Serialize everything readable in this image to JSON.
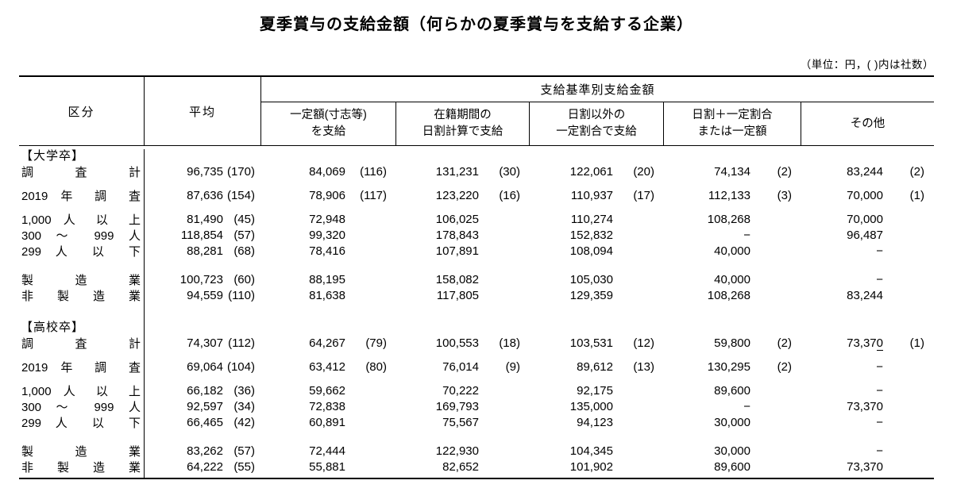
{
  "title": "夏季賞与の支給金額（何らかの夏季賞与を支給する企業）",
  "unit_note": "（単位：円，( )内は社数）",
  "table": {
    "corner_header": "区分",
    "average_header": "平均",
    "group_header": "支給基準別支給金額",
    "basis_columns": [
      {
        "line1": "一定額(寸志等)",
        "line2": "を支給"
      },
      {
        "line1": "在籍期間の",
        "line2": "日割計算で支給"
      },
      {
        "line1": "日割以外の",
        "line2": "一定割合で支給"
      },
      {
        "line1": "日割＋一定割合",
        "line2": "または一定額"
      },
      {
        "line1": "その他",
        "line2": ""
      }
    ],
    "sections": [
      {
        "header": "【大学卒】",
        "groups": [
          [
            {
              "label": "調 査 計",
              "cells": [
                {
                  "v": "96,735",
                  "n": "(170)"
                },
                {
                  "v": "84,069",
                  "n": "(116)"
                },
                {
                  "v": "131,231",
                  "n": "(30)"
                },
                {
                  "v": "122,061",
                  "n": "(20)"
                },
                {
                  "v": "74,134",
                  "n": "(2)"
                },
                {
                  "v": "83,244",
                  "n": "(2)"
                }
              ]
            }
          ],
          [
            {
              "label": "2019 年 調 査",
              "cells": [
                {
                  "v": "87,636",
                  "n": "(154)"
                },
                {
                  "v": "78,906",
                  "n": "(117)"
                },
                {
                  "v": "123,220",
                  "n": "(16)"
                },
                {
                  "v": "110,937",
                  "n": "(17)"
                },
                {
                  "v": "112,133",
                  "n": "(3)"
                },
                {
                  "v": "70,000",
                  "n": "(1)"
                }
              ]
            }
          ],
          [
            {
              "label": "1,000 人 以 上",
              "cells": [
                {
                  "v": "81,490",
                  "n": "(45)"
                },
                {
                  "v": "72,948"
                },
                {
                  "v": "106,025"
                },
                {
                  "v": "110,274"
                },
                {
                  "v": "108,268"
                },
                {
                  "v": "70,000"
                }
              ]
            },
            {
              "label": "300 〜 999 人",
              "cells": [
                {
                  "v": "118,854",
                  "n": "(57)"
                },
                {
                  "v": "99,320"
                },
                {
                  "v": "178,843"
                },
                {
                  "v": "152,832"
                },
                {
                  "v": "−"
                },
                {
                  "v": "96,487"
                }
              ]
            },
            {
              "label": "299 人 以 下",
              "cells": [
                {
                  "v": "88,281",
                  "n": "(68)"
                },
                {
                  "v": "78,416"
                },
                {
                  "v": "107,891"
                },
                {
                  "v": "108,094"
                },
                {
                  "v": "40,000"
                },
                {
                  "v": "−"
                }
              ]
            }
          ],
          [
            {
              "label": "製 造 業",
              "cells": [
                {
                  "v": "100,723",
                  "n": "(60)"
                },
                {
                  "v": "88,195"
                },
                {
                  "v": "158,082"
                },
                {
                  "v": "105,030"
                },
                {
                  "v": "40,000"
                },
                {
                  "v": "−"
                }
              ]
            },
            {
              "label": "非 製 造 業",
              "cells": [
                {
                  "v": "94,559",
                  "n": "(110)"
                },
                {
                  "v": "81,638"
                },
                {
                  "v": "117,805"
                },
                {
                  "v": "129,359"
                },
                {
                  "v": "108,268"
                },
                {
                  "v": "83,244"
                }
              ]
            }
          ]
        ]
      },
      {
        "header": "【高校卒】",
        "groups": [
          [
            {
              "label": "調 査 計",
              "cells": [
                {
                  "v": "74,307",
                  "n": "(112)"
                },
                {
                  "v": "64,267",
                  "n": "(79)"
                },
                {
                  "v": "100,553",
                  "n": "(18)"
                },
                {
                  "v": "103,531",
                  "n": "(12)"
                },
                {
                  "v": "59,800",
                  "n": "(2)"
                },
                {
                  "v": "73,370",
                  "n": "(1)",
                  "u": true
                }
              ]
            }
          ],
          [
            {
              "label": "2019 年 調 査",
              "cells": [
                {
                  "v": "69,064",
                  "n": "(104)"
                },
                {
                  "v": "63,412",
                  "n": "(80)"
                },
                {
                  "v": "76,014",
                  "n": "(9)"
                },
                {
                  "v": "89,612",
                  "n": "(13)"
                },
                {
                  "v": "130,295",
                  "n": "(2)"
                },
                {
                  "v": "−"
                }
              ]
            }
          ],
          [
            {
              "label": "1,000 人 以 上",
              "cells": [
                {
                  "v": "66,182",
                  "n": "(36)"
                },
                {
                  "v": "59,662"
                },
                {
                  "v": "70,222"
                },
                {
                  "v": "92,175"
                },
                {
                  "v": "89,600"
                },
                {
                  "v": "−"
                }
              ]
            },
            {
              "label": "300 〜 999 人",
              "cells": [
                {
                  "v": "92,597",
                  "n": "(34)"
                },
                {
                  "v": "72,838"
                },
                {
                  "v": "169,793"
                },
                {
                  "v": "135,000"
                },
                {
                  "v": "−"
                },
                {
                  "v": "73,370"
                }
              ]
            },
            {
              "label": "299 人 以 下",
              "cells": [
                {
                  "v": "66,465",
                  "n": "(42)"
                },
                {
                  "v": "60,891"
                },
                {
                  "v": "75,567"
                },
                {
                  "v": "94,123"
                },
                {
                  "v": "30,000"
                },
                {
                  "v": "−"
                }
              ]
            }
          ],
          [
            {
              "label": "製 造 業",
              "cells": [
                {
                  "v": "83,262",
                  "n": "(57)"
                },
                {
                  "v": "72,444"
                },
                {
                  "v": "122,930"
                },
                {
                  "v": "104,345"
                },
                {
                  "v": "30,000"
                },
                {
                  "v": "−"
                }
              ]
            },
            {
              "label": "非 製 造 業",
              "cells": [
                {
                  "v": "64,222",
                  "n": "(55)"
                },
                {
                  "v": "55,881"
                },
                {
                  "v": "82,652"
                },
                {
                  "v": "101,902"
                },
                {
                  "v": "89,600"
                },
                {
                  "v": "73,370"
                }
              ]
            }
          ]
        ]
      }
    ]
  }
}
